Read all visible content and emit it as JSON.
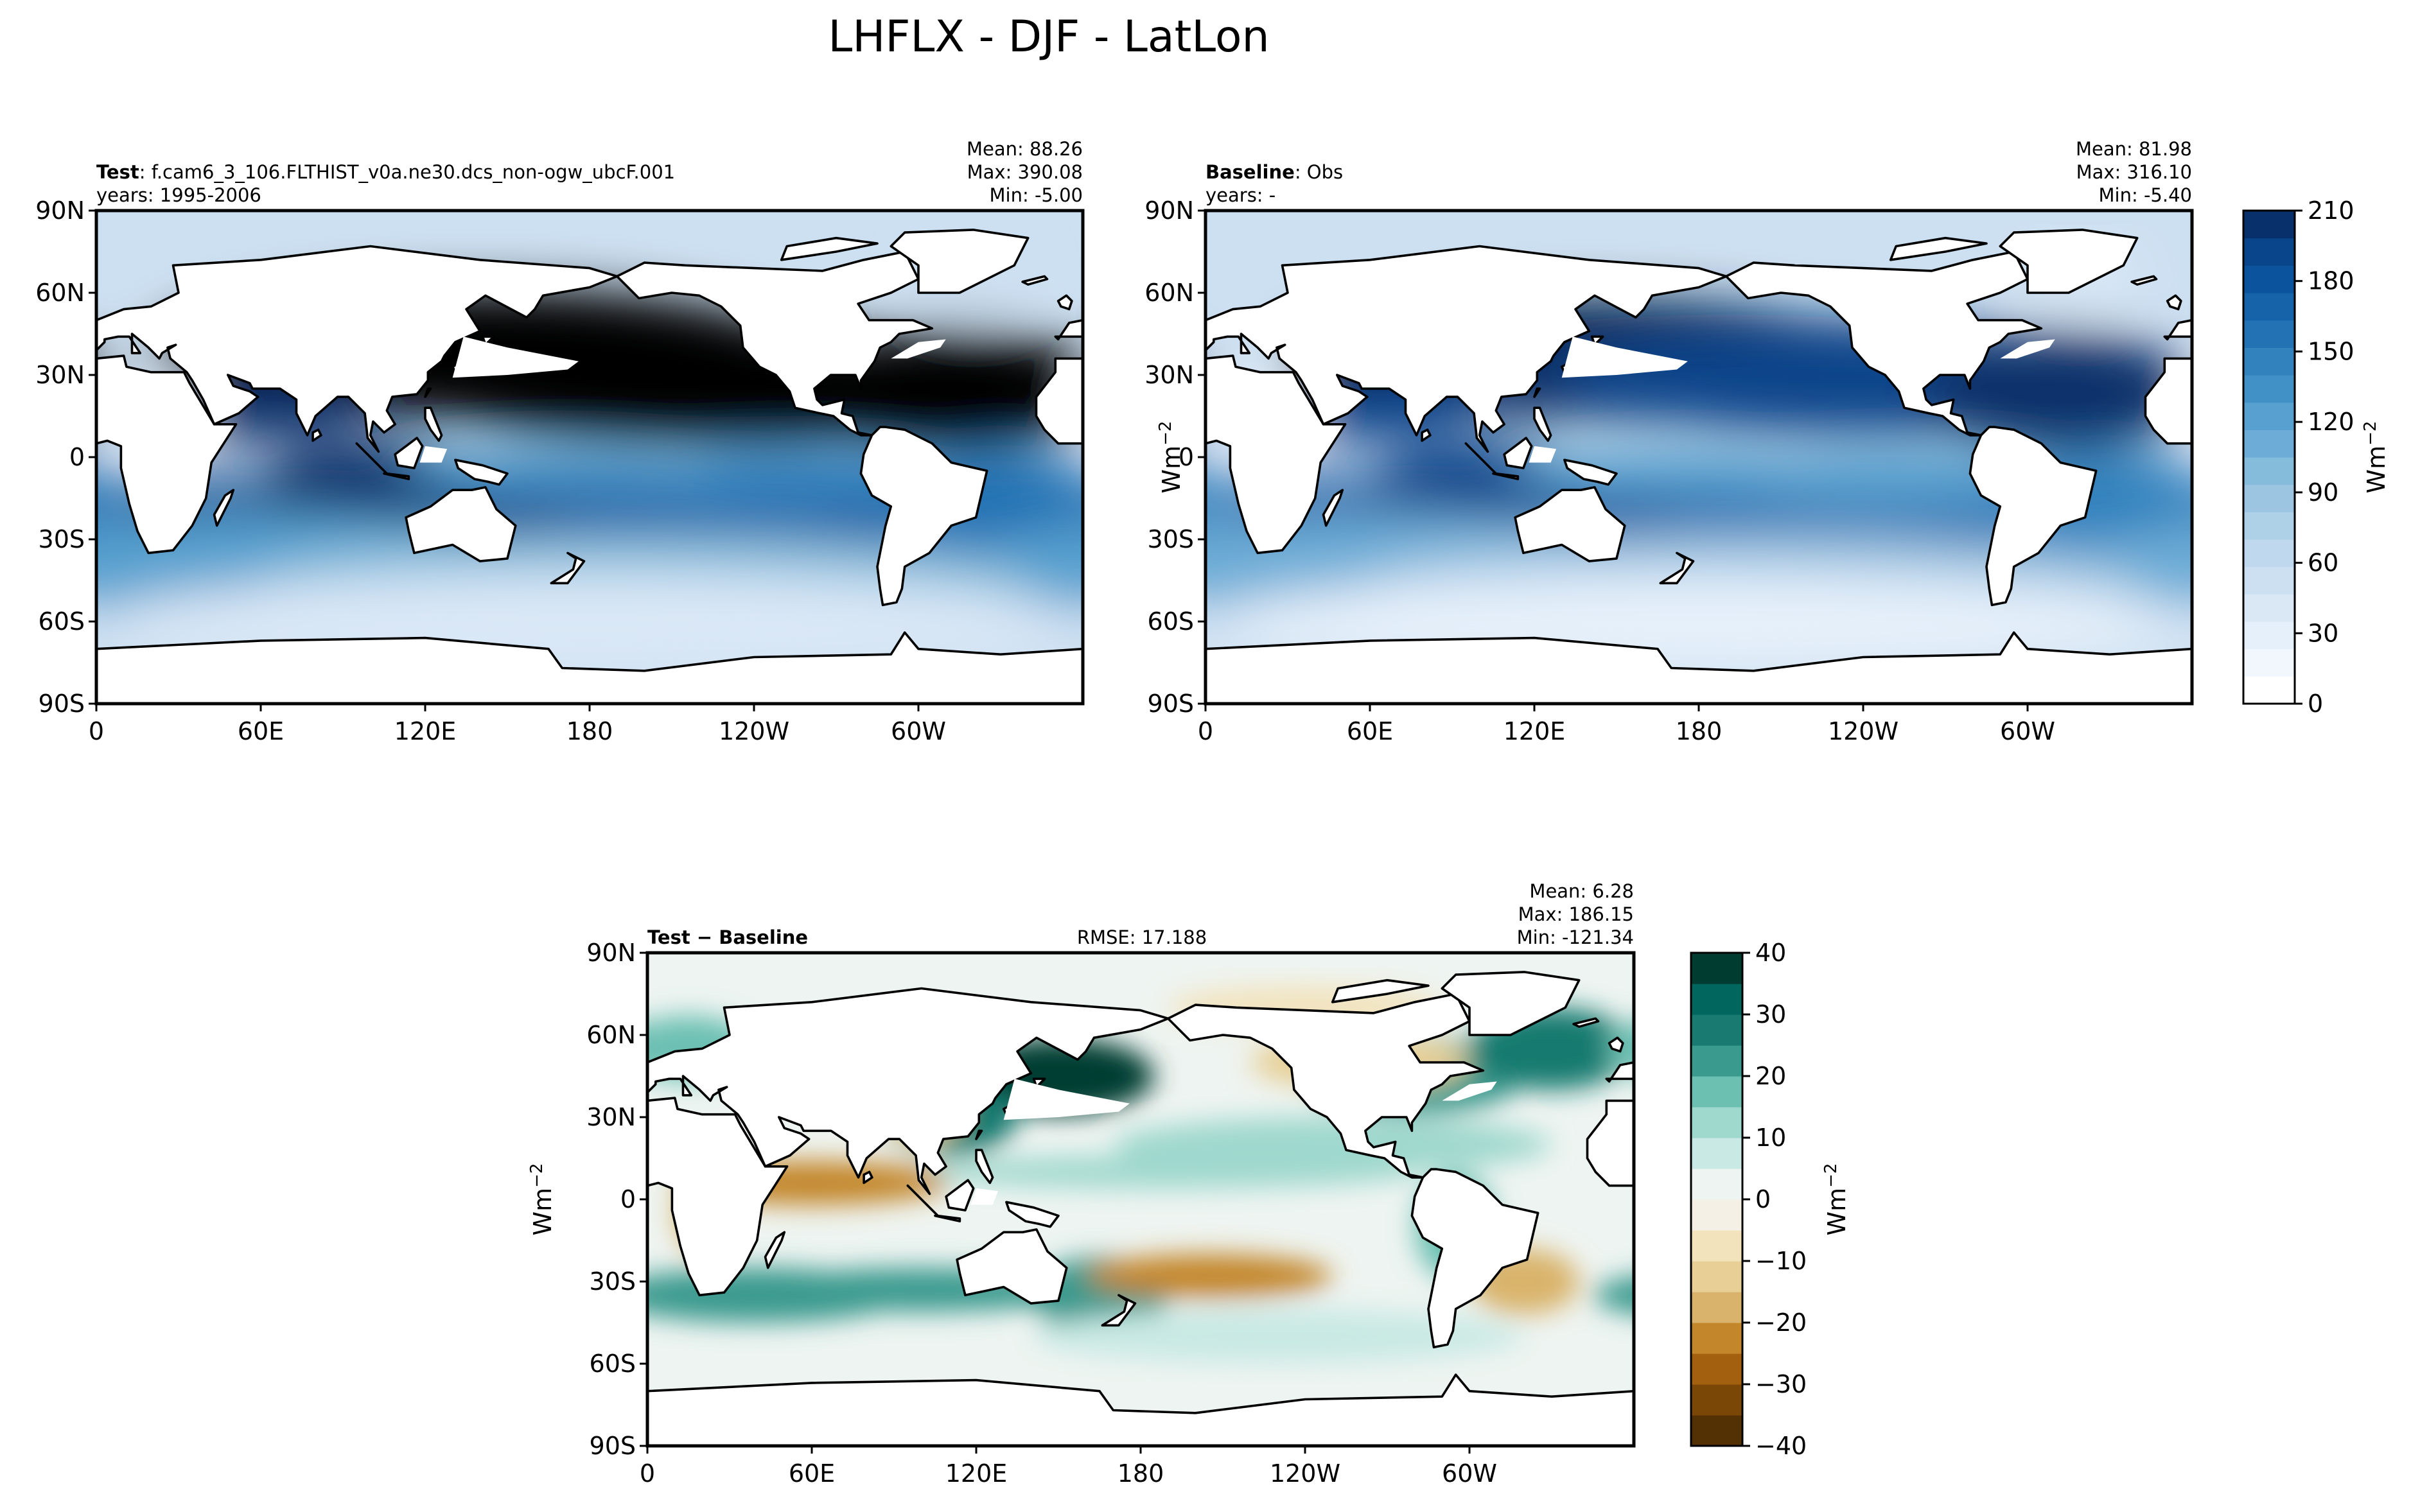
{
  "figure_title": "LHFLX - DJF - LatLon",
  "colors": {
    "blues": [
      "#ffffff",
      "#f2f7fd",
      "#e6f0fa",
      "#dae8f6",
      "#cde0f1",
      "#bfd8ee",
      "#afd1e7",
      "#9cc5e2",
      "#85bcdb",
      "#6cacd6",
      "#57a0cf",
      "#4291c6",
      "#3282be",
      "#2272b4",
      "#1663aa",
      "#0b539d",
      "#08458a",
      "#08306b"
    ],
    "brbg": [
      "#543005",
      "#7a4707",
      "#a3610f",
      "#c3862a",
      "#d9b36b",
      "#e7cf95",
      "#f2e3bd",
      "#f5f0e6",
      "#eef4f1",
      "#c9e9e4",
      "#9fd8cd",
      "#6cc0b2",
      "#3a9a8e",
      "#187a70",
      "#01665e",
      "#003c30"
    ],
    "land": "#ffffff",
    "coast": "#000000"
  },
  "chart_data": [
    {
      "type": "heatmap",
      "panel": "test",
      "label_bold": "Test",
      "label_rest": ": f.cam6_3_106.FLTHIST_v0a.ne30.dcs_non-ogw_ubcF.001",
      "years": "years: 1995-2006",
      "stats": [
        "Mean: 88.26",
        "Max: 390.08",
        "Min: -5.00"
      ],
      "xticks": [
        "0",
        "60E",
        "120E",
        "180",
        "120W",
        "60W"
      ],
      "yticks": [
        "90N",
        "60N",
        "30N",
        "0",
        "30S",
        "60S",
        "90S"
      ],
      "xlim": [
        0,
        360
      ],
      "ylim": [
        -90,
        90
      ]
    },
    {
      "type": "heatmap",
      "panel": "baseline",
      "label_bold": "Baseline",
      "label_rest": ": Obs",
      "years": "years: -",
      "stats": [
        "Mean: 81.98",
        "Max: 316.10",
        "Min: -5.40"
      ],
      "xticks": [
        "0",
        "60E",
        "120E",
        "180",
        "120W",
        "60W"
      ],
      "yticks": [
        "90N",
        "60N",
        "30N",
        "0",
        "30S",
        "60S",
        "90S"
      ],
      "xlim": [
        0,
        360
      ],
      "ylim": [
        -90,
        90
      ],
      "colorbar": {
        "ticks": [
          "210",
          "180",
          "150",
          "120",
          "90",
          "60",
          "30",
          "0"
        ],
        "label": "Wm",
        "label_sup": "−2",
        "range": [
          0,
          210
        ]
      },
      "ylabel": "Wm",
      "ylabel_sup": "−2"
    },
    {
      "type": "heatmap",
      "panel": "diff",
      "label_bold": "Test − Baseline",
      "rmse": "RMSE: 17.188",
      "stats": [
        "Mean:  6.28",
        "Max: 186.15",
        "Min: -121.34"
      ],
      "xticks": [
        "0",
        "60E",
        "120E",
        "180",
        "120W",
        "60W"
      ],
      "yticks": [
        "90N",
        "60N",
        "30N",
        "0",
        "30S",
        "60S",
        "90S"
      ],
      "xlim": [
        0,
        360
      ],
      "ylim": [
        -90,
        90
      ],
      "ylabel": "Wm",
      "ylabel_sup": "−2",
      "colorbar": {
        "ticks": [
          "40",
          "30",
          "20",
          "10",
          "0",
          "−10",
          "−20",
          "−30",
          "−40"
        ],
        "label": "Wm",
        "label_sup": "−2",
        "range": [
          -40,
          40
        ]
      }
    }
  ]
}
